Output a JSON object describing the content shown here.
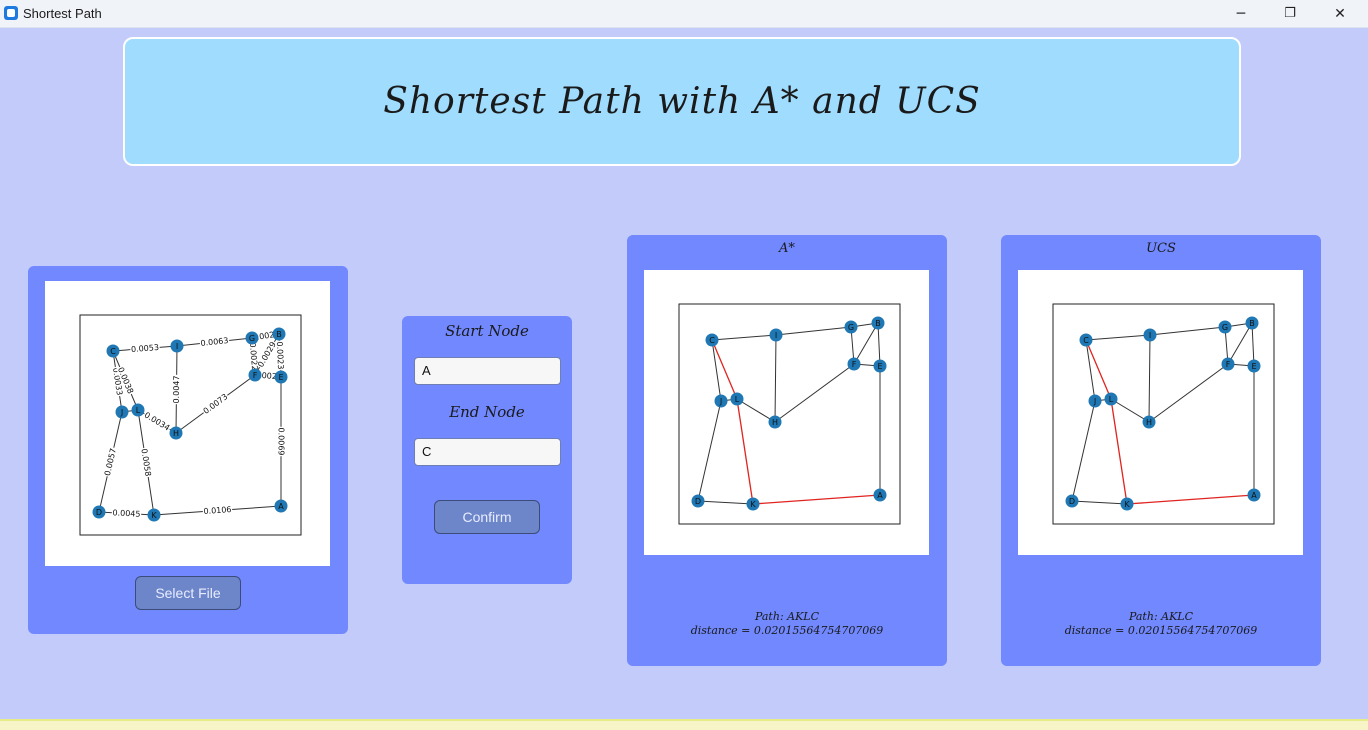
{
  "window": {
    "title": "Shortest Path",
    "minimize_glyph": "─",
    "restore_glyph": "❐",
    "close_glyph": "✕"
  },
  "header": {
    "title": "Shortest Path with A* and UCS"
  },
  "input_panel": {
    "select_file_label": "Select File",
    "graph": {
      "nodes": [
        {
          "id": "C"
        },
        {
          "id": "I"
        },
        {
          "id": "G"
        },
        {
          "id": "B"
        },
        {
          "id": "F"
        },
        {
          "id": "E"
        },
        {
          "id": "J"
        },
        {
          "id": "L"
        },
        {
          "id": "H"
        },
        {
          "id": "D"
        },
        {
          "id": "K"
        },
        {
          "id": "A"
        }
      ],
      "edges": [
        {
          "a": "C",
          "b": "I",
          "w": "0.0053"
        },
        {
          "a": "I",
          "b": "G",
          "w": "0.0063"
        },
        {
          "a": "G",
          "b": "B",
          "w": "0.0023"
        },
        {
          "a": "G",
          "b": "F",
          "w": "0.0022"
        },
        {
          "a": "B",
          "b": "F",
          "w": "0.0029"
        },
        {
          "a": "B",
          "b": "E",
          "w": "0.0023"
        },
        {
          "a": "F",
          "b": "E",
          "w": "0.0022"
        },
        {
          "a": "C",
          "b": "J",
          "w": "0.0033"
        },
        {
          "a": "C",
          "b": "L",
          "w": "0.0038"
        },
        {
          "a": "J",
          "b": "L",
          "w": ""
        },
        {
          "a": "L",
          "b": "H",
          "w": "0.0034"
        },
        {
          "a": "I",
          "b": "H",
          "w": "0.0047"
        },
        {
          "a": "H",
          "b": "F",
          "w": "0.0073"
        },
        {
          "a": "E",
          "b": "A",
          "w": "0.0069"
        },
        {
          "a": "J",
          "b": "D",
          "w": "0.0057"
        },
        {
          "a": "L",
          "b": "K",
          "w": "0.0058"
        },
        {
          "a": "D",
          "b": "K",
          "w": "0.0045"
        },
        {
          "a": "K",
          "b": "A",
          "w": "0.0106"
        }
      ]
    }
  },
  "node_selection": {
    "start_label": "Start Node",
    "start_value": "A",
    "end_label": "End Node",
    "end_value": "C",
    "confirm_label": "Confirm"
  },
  "astar": {
    "title": "A*",
    "path_text": "Path: AKLC",
    "distance_text": "distance = 0.020155647547070​69",
    "highlight_path": [
      "A",
      "K",
      "L",
      "C"
    ]
  },
  "ucs": {
    "title": "UCS",
    "path_text": "Path: AKLC",
    "distance_text": "distance = 0.020155647547070​69",
    "highlight_path": [
      "A",
      "K",
      "L",
      "C"
    ]
  },
  "colors": {
    "background": "#c3cbfb",
    "panel": "#7188fe",
    "header": "#a0dcfe",
    "node": "#1f77b4",
    "path": "#e0241f"
  }
}
